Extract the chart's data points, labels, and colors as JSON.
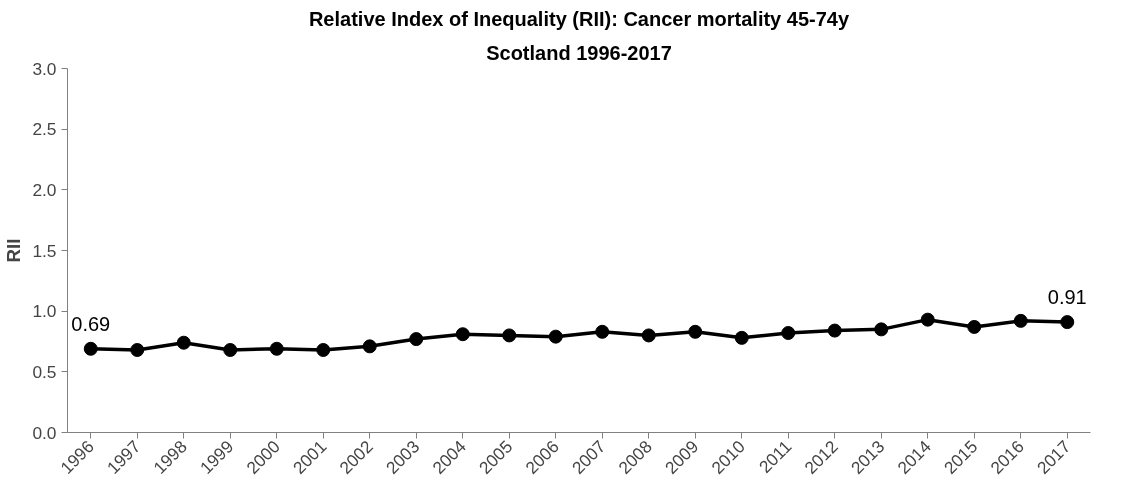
{
  "chart_data": {
    "type": "line",
    "title": "Relative Index of Inequality (RII): Cancer mortality 45-74y",
    "subtitle": "Scotland 1996-2017",
    "ylabel": "RII",
    "categories": [
      "1996",
      "1997",
      "1998",
      "1999",
      "2000",
      "2001",
      "2002",
      "2003",
      "2004",
      "2005",
      "2006",
      "2007",
      "2008",
      "2009",
      "2010",
      "2011",
      "2012",
      "2013",
      "2014",
      "2015",
      "2016",
      "2017"
    ],
    "series": [
      {
        "color": "#000000",
        "values": [
          0.69,
          0.68,
          0.74,
          0.68,
          0.69,
          0.68,
          0.71,
          0.77,
          0.81,
          0.8,
          0.79,
          0.83,
          0.8,
          0.83,
          0.78,
          0.82,
          0.84,
          0.85,
          0.93,
          0.87,
          0.92,
          0.91
        ],
        "value_labels": [
          "0.69",
          null,
          null,
          null,
          null,
          null,
          null,
          null,
          null,
          null,
          null,
          null,
          null,
          null,
          null,
          null,
          null,
          null,
          null,
          null,
          null,
          "0.91"
        ]
      }
    ],
    "ylim": [
      0,
      3
    ],
    "yticks": [
      "0.0",
      "0.5",
      "1.0",
      "1.5",
      "2.0",
      "2.5",
      "3.0"
    ],
    "marker": "circle",
    "line_style": "solid",
    "grid": false
  }
}
